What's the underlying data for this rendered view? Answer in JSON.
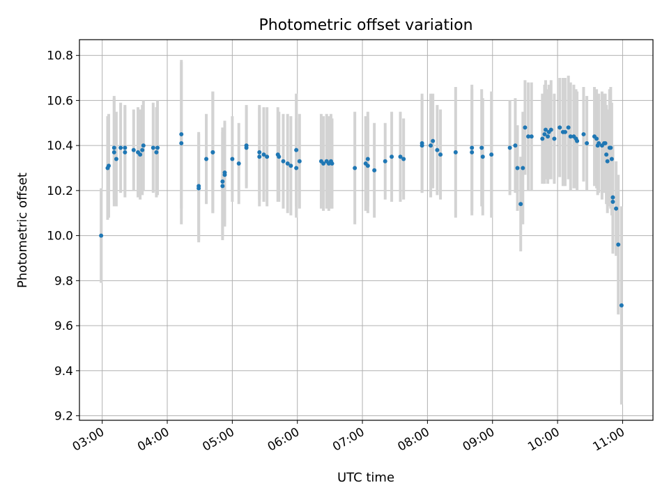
{
  "chart_data": {
    "type": "scatter",
    "title": "Photometric offset variation",
    "xlabel": "UTC time",
    "ylabel": "Photometric offset",
    "xlim": [
      "02:39",
      "11:28"
    ],
    "ylim": [
      9.18,
      10.87
    ],
    "grid": true,
    "x_ticks": [
      "03:00",
      "04:00",
      "05:00",
      "06:00",
      "07:00",
      "08:00",
      "09:00",
      "10:00",
      "11:00"
    ],
    "y_ticks": [
      "9.2",
      "9.4",
      "9.6",
      "9.8",
      "10.0",
      "10.2",
      "10.4",
      "10.6",
      "10.8"
    ],
    "colors": {
      "points": "#1f77b4",
      "error_bars": "#d3d3d3",
      "grid": "#b0b0b0"
    },
    "series": [
      {
        "points": [
          {
            "x": "02:59",
            "y": 10.0,
            "e": 0.21
          },
          {
            "x": "03:05",
            "y": 10.3,
            "e": 0.23
          },
          {
            "x": "03:06",
            "y": 10.31,
            "e": 0.23
          },
          {
            "x": "03:11",
            "y": 10.37,
            "e": 0.24
          },
          {
            "x": "03:11",
            "y": 10.39,
            "e": 0.23
          },
          {
            "x": "03:13",
            "y": 10.34,
            "e": 0.21
          },
          {
            "x": "03:17",
            "y": 10.39,
            "e": 0.2
          },
          {
            "x": "03:21",
            "y": 10.37,
            "e": 0.2
          },
          {
            "x": "03:21",
            "y": 10.39,
            "e": 0.19
          },
          {
            "x": "03:29",
            "y": 10.38,
            "e": 0.18
          },
          {
            "x": "03:33",
            "y": 10.37,
            "e": 0.2
          },
          {
            "x": "03:35",
            "y": 10.36,
            "e": 0.2
          },
          {
            "x": "03:37",
            "y": 10.38,
            "e": 0.2
          },
          {
            "x": "03:38",
            "y": 10.4,
            "e": 0.2
          },
          {
            "x": "03:47",
            "y": 10.39,
            "e": 0.2
          },
          {
            "x": "03:50",
            "y": 10.37,
            "e": 0.2
          },
          {
            "x": "03:51",
            "y": 10.39,
            "e": 0.21
          },
          {
            "x": "04:13",
            "y": 10.45,
            "e": 0.33
          },
          {
            "x": "04:13",
            "y": 10.41,
            "e": 0.36
          },
          {
            "x": "04:29",
            "y": 10.22,
            "e": 0.24
          },
          {
            "x": "04:29",
            "y": 10.21,
            "e": 0.24
          },
          {
            "x": "04:36",
            "y": 10.34,
            "e": 0.2
          },
          {
            "x": "04:42",
            "y": 10.37,
            "e": 0.27
          },
          {
            "x": "04:42",
            "y": 10.37,
            "e": 0.27
          },
          {
            "x": "04:51",
            "y": 10.24,
            "e": 0.24
          },
          {
            "x": "04:51",
            "y": 10.22,
            "e": 0.24
          },
          {
            "x": "04:53",
            "y": 10.27,
            "e": 0.23
          },
          {
            "x": "04:53",
            "y": 10.28,
            "e": 0.23
          },
          {
            "x": "05:00",
            "y": 10.34,
            "e": 0.19
          },
          {
            "x": "05:06",
            "y": 10.32,
            "e": 0.18
          },
          {
            "x": "05:13",
            "y": 10.39,
            "e": 0.18
          },
          {
            "x": "05:13",
            "y": 10.4,
            "e": 0.18
          },
          {
            "x": "05:25",
            "y": 10.37,
            "e": 0.21
          },
          {
            "x": "05:25",
            "y": 10.35,
            "e": 0.22
          },
          {
            "x": "05:29",
            "y": 10.36,
            "e": 0.21
          },
          {
            "x": "05:32",
            "y": 10.35,
            "e": 0.22
          },
          {
            "x": "05:42",
            "y": 10.36,
            "e": 0.21
          },
          {
            "x": "05:43",
            "y": 10.35,
            "e": 0.2
          },
          {
            "x": "05:47",
            "y": 10.33,
            "e": 0.21
          },
          {
            "x": "05:51",
            "y": 10.32,
            "e": 0.22
          },
          {
            "x": "05:54",
            "y": 10.31,
            "e": 0.22
          },
          {
            "x": "05:59",
            "y": 10.38,
            "e": 0.25
          },
          {
            "x": "05:59",
            "y": 10.3,
            "e": 0.22
          },
          {
            "x": "06:02",
            "y": 10.33,
            "e": 0.21
          },
          {
            "x": "06:22",
            "y": 10.33,
            "e": 0.21
          },
          {
            "x": "06:24",
            "y": 10.32,
            "e": 0.21
          },
          {
            "x": "06:27",
            "y": 10.33,
            "e": 0.21
          },
          {
            "x": "06:29",
            "y": 10.32,
            "e": 0.21
          },
          {
            "x": "06:31",
            "y": 10.33,
            "e": 0.21
          },
          {
            "x": "06:32",
            "y": 10.32,
            "e": 0.2
          },
          {
            "x": "06:53",
            "y": 10.3,
            "e": 0.25
          },
          {
            "x": "07:03",
            "y": 10.32,
            "e": 0.21
          },
          {
            "x": "07:05",
            "y": 10.34,
            "e": 0.21
          },
          {
            "x": "07:05",
            "y": 10.31,
            "e": 0.21
          },
          {
            "x": "07:11",
            "y": 10.29,
            "e": 0.21
          },
          {
            "x": "07:21",
            "y": 10.33,
            "e": 0.17
          },
          {
            "x": "07:27",
            "y": 10.35,
            "e": 0.2
          },
          {
            "x": "07:35",
            "y": 10.35,
            "e": 0.2
          },
          {
            "x": "07:38",
            "y": 10.34,
            "e": 0.18
          },
          {
            "x": "07:55",
            "y": 10.4,
            "e": 0.21
          },
          {
            "x": "07:55",
            "y": 10.41,
            "e": 0.22
          },
          {
            "x": "08:03",
            "y": 10.4,
            "e": 0.23
          },
          {
            "x": "08:05",
            "y": 10.42,
            "e": 0.21
          },
          {
            "x": "08:09",
            "y": 10.38,
            "e": 0.2
          },
          {
            "x": "08:12",
            "y": 10.36,
            "e": 0.2
          },
          {
            "x": "08:26",
            "y": 10.37,
            "e": 0.29
          },
          {
            "x": "08:41",
            "y": 10.39,
            "e": 0.28
          },
          {
            "x": "08:41",
            "y": 10.37,
            "e": 0.28
          },
          {
            "x": "08:50",
            "y": 10.39,
            "e": 0.26
          },
          {
            "x": "08:51",
            "y": 10.35,
            "e": 0.26
          },
          {
            "x": "08:59",
            "y": 10.36,
            "e": 0.28
          },
          {
            "x": "09:16",
            "y": 10.39,
            "e": 0.21
          },
          {
            "x": "09:21",
            "y": 10.4,
            "e": 0.21
          },
          {
            "x": "09:23",
            "y": 10.3,
            "e": 0.19
          },
          {
            "x": "09:26",
            "y": 10.14,
            "e": 0.21
          },
          {
            "x": "09:28",
            "y": 10.3,
            "e": 0.25
          },
          {
            "x": "09:30",
            "y": 10.48,
            "e": 0.21
          },
          {
            "x": "09:33",
            "y": 10.44,
            "e": 0.24
          },
          {
            "x": "09:36",
            "y": 10.44,
            "e": 0.24
          },
          {
            "x": "09:46",
            "y": 10.43,
            "e": 0.2
          },
          {
            "x": "09:48",
            "y": 10.45,
            "e": 0.22
          },
          {
            "x": "09:49",
            "y": 10.47,
            "e": 0.22
          },
          {
            "x": "09:51",
            "y": 10.44,
            "e": 0.21
          },
          {
            "x": "09:52",
            "y": 10.46,
            "e": 0.21
          },
          {
            "x": "09:54",
            "y": 10.47,
            "e": 0.22
          },
          {
            "x": "09:57",
            "y": 10.43,
            "e": 0.2
          },
          {
            "x": "10:02",
            "y": 10.48,
            "e": 0.22
          },
          {
            "x": "10:05",
            "y": 10.46,
            "e": 0.24
          },
          {
            "x": "10:07",
            "y": 10.46,
            "e": 0.24
          },
          {
            "x": "10:10",
            "y": 10.48,
            "e": 0.23
          },
          {
            "x": "10:12",
            "y": 10.44,
            "e": 0.24
          },
          {
            "x": "10:15",
            "y": 10.44,
            "e": 0.23
          },
          {
            "x": "10:17",
            "y": 10.43,
            "e": 0.22
          },
          {
            "x": "10:18",
            "y": 10.42,
            "e": 0.22
          },
          {
            "x": "10:24",
            "y": 10.45,
            "e": 0.21
          },
          {
            "x": "10:27",
            "y": 10.41,
            "e": 0.21
          },
          {
            "x": "10:34",
            "y": 10.44,
            "e": 0.22
          },
          {
            "x": "10:36",
            "y": 10.43,
            "e": 0.22
          },
          {
            "x": "10:37",
            "y": 10.4,
            "e": 0.22
          },
          {
            "x": "10:38",
            "y": 10.41,
            "e": 0.22
          },
          {
            "x": "10:41",
            "y": 10.4,
            "e": 0.24
          },
          {
            "x": "10:43",
            "y": 10.41,
            "e": 0.22
          },
          {
            "x": "10:44",
            "y": 10.41,
            "e": 0.22
          },
          {
            "x": "10:45",
            "y": 10.36,
            "e": 0.22
          },
          {
            "x": "10:46",
            "y": 10.33,
            "e": 0.23
          },
          {
            "x": "10:48",
            "y": 10.39,
            "e": 0.26
          },
          {
            "x": "10:49",
            "y": 10.39,
            "e": 0.27
          },
          {
            "x": "10:50",
            "y": 10.34,
            "e": 0.25
          },
          {
            "x": "10:51",
            "y": 10.17,
            "e": 0.23
          },
          {
            "x": "10:51",
            "y": 10.15,
            "e": 0.23
          },
          {
            "x": "10:54",
            "y": 10.12,
            "e": 0.21
          },
          {
            "x": "10:56",
            "y": 9.96,
            "e": 0.31
          },
          {
            "x": "10:59",
            "y": 9.69,
            "e": 0.44
          }
        ]
      }
    ]
  }
}
